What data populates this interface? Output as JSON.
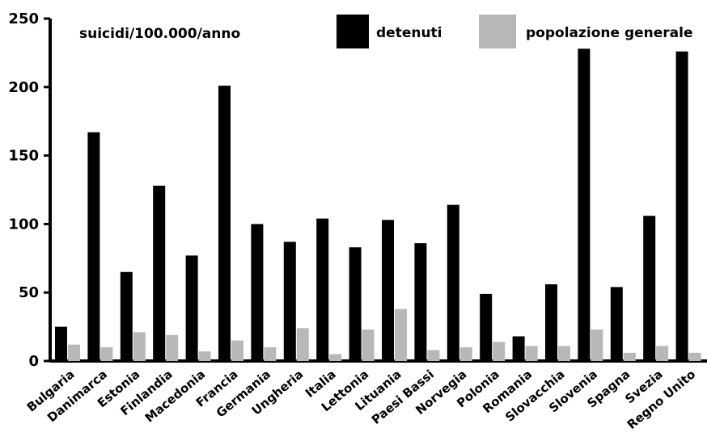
{
  "chart_data": {
    "type": "bar",
    "unit_label": "suicidi/100.000/anno",
    "categories": [
      "Bulgaria",
      "Danimarca",
      "Estonia",
      "Finlandia",
      "Macedonia",
      "Francia",
      "Germania",
      "Ungheria",
      "Italia",
      "Lettonia",
      "Lituania",
      "Paesi Bassi",
      "Norvegia",
      "Polonia",
      "Romania",
      "Slovacchia",
      "Slovenia",
      "Spagna",
      "Svezia",
      "Regno Unito"
    ],
    "series": [
      {
        "name": "detenuti",
        "color": "#000000",
        "values": [
          25,
          167,
          65,
          128,
          77,
          201,
          100,
          87,
          104,
          83,
          103,
          86,
          114,
          49,
          18,
          56,
          228,
          54,
          106,
          226
        ]
      },
      {
        "name": "popolazione generale",
        "color": "#b8b8b8",
        "values": [
          12,
          10,
          21,
          19,
          7,
          15,
          10,
          24,
          5,
          23,
          38,
          8,
          10,
          14,
          11,
          11,
          23,
          6,
          11,
          6
        ]
      }
    ],
    "ylim": [
      0,
      250
    ],
    "yticks": [
      0,
      50,
      100,
      150,
      200,
      250
    ],
    "legend_position": "top-right",
    "grid": false
  }
}
